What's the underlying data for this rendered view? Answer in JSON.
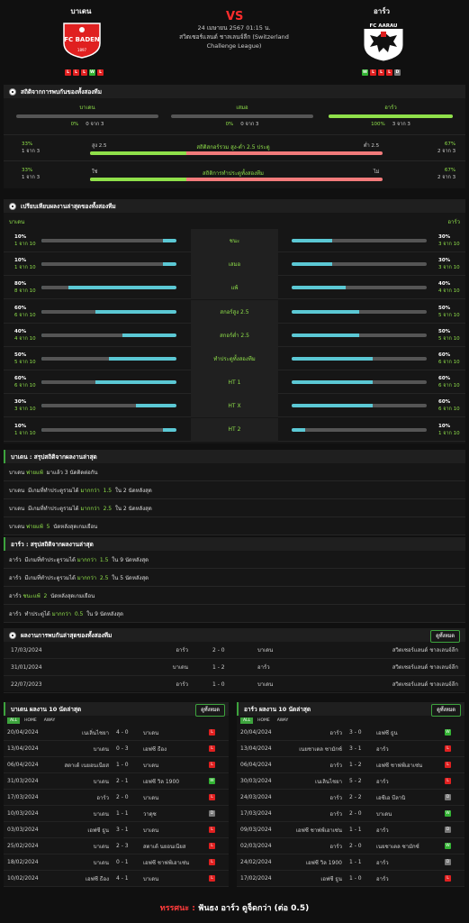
{
  "header": {
    "home": "บาเดน",
    "away": "อาร์ว",
    "vs": "VS",
    "date": "24 เมษายน 2567 01:15 น.",
    "league_line1": "สวิตเซอร์แลนด์ ชาลเลนจ์ลีก (Switzerland",
    "league_line2": "Challenge League)",
    "home_logo_text": "FC BADEN",
    "home_logo_sub": "1897",
    "away_logo_text": "FC AARAU",
    "home_form": [
      "L",
      "L",
      "L",
      "W",
      "L"
    ],
    "away_form": [
      "W",
      "L",
      "L",
      "L",
      "D"
    ]
  },
  "h2h_stats": {
    "title": "สถิติจากการพบกันของทั้งสองทีม",
    "cols": [
      {
        "name": "บาเดน",
        "pct": "0%",
        "sub": "0 จาก 3",
        "fill": 0
      },
      {
        "name": "เสมอ",
        "pct": "0%",
        "sub": "0 จาก 3",
        "fill": 0
      },
      {
        "name": "อาร์ว",
        "pct": "100%",
        "sub": "3 จาก 3",
        "fill": 1
      }
    ],
    "ou": {
      "left_pct": "33%",
      "left_sub": "1 จาก 3",
      "over_label": "สูง 2.5",
      "title": "สถิติสกอร์รวม สูง-ต่ำ 2.5 ประตู",
      "under_label": "ต่ำ 2.5",
      "right_pct": "67%",
      "right_sub": "2 จาก 3",
      "left_fill": 0.33
    },
    "btts": {
      "left_pct": "33%",
      "left_sub": "1 จาก 3",
      "yes_label": "ใช่",
      "title": "สถิติการทำประตูทั้งสองทีม",
      "no_label": "ไม่",
      "right_pct": "67%",
      "right_sub": "2 จาก 3",
      "left_fill": 0.33
    }
  },
  "compare": {
    "title": "เปรียบเทียบผลงานล่าสุดของทั้งสองทีม",
    "home": "บาเดน",
    "away": "อาร์ว",
    "rows": [
      {
        "label": "ชนะ",
        "l": "10%",
        "ls": "1 จาก 10",
        "lf": 0.1,
        "r": "30%",
        "rs": "3 จาก 10",
        "rf": 0.3
      },
      {
        "label": "เสมอ",
        "l": "10%",
        "ls": "1 จาก 10",
        "lf": 0.1,
        "r": "30%",
        "rs": "3 จาก 10",
        "rf": 0.3
      },
      {
        "label": "แพ้",
        "l": "80%",
        "ls": "8 จาก 10",
        "lf": 0.8,
        "r": "40%",
        "rs": "4 จาก 10",
        "rf": 0.4
      },
      {
        "label": "สกอร์สูง 2.5",
        "l": "60%",
        "ls": "6 จาก 10",
        "lf": 0.6,
        "r": "50%",
        "rs": "5 จาก 10",
        "rf": 0.5
      },
      {
        "label": "สกอร์ต่ำ 2.5",
        "l": "40%",
        "ls": "4 จาก 10",
        "lf": 0.4,
        "r": "50%",
        "rs": "5 จาก 10",
        "rf": 0.5
      },
      {
        "label": "ทำประตูทั้งสองทีม",
        "l": "50%",
        "ls": "5 จาก 10",
        "lf": 0.5,
        "r": "60%",
        "rs": "6 จาก 10",
        "rf": 0.6
      },
      {
        "label": "HT 1",
        "l": "60%",
        "ls": "6 จาก 10",
        "lf": 0.6,
        "r": "60%",
        "rs": "6 จาก 10",
        "rf": 0.6
      },
      {
        "label": "HT X",
        "l": "30%",
        "ls": "3 จาก 10",
        "lf": 0.3,
        "r": "60%",
        "rs": "6 จาก 10",
        "rf": 0.6
      },
      {
        "label": "HT 2",
        "l": "10%",
        "ls": "1 จาก 10",
        "lf": 0.1,
        "r": "10%",
        "rs": "1 จาก 10",
        "rf": 0.1
      }
    ]
  },
  "home_summary": {
    "title": "บาเดน : สรุปสถิติจากผลงานล่าสุด",
    "rows": [
      [
        "บาเดน ",
        "พ่ายแพ้",
        "  มาแล้ว 3 นัดติดต่อกัน"
      ],
      [
        "บาเดน  มีเกมที่ทำประตูรวมได้ ",
        "มากกว่า  1.5",
        "  ใน 2 นัดหลังสุด"
      ],
      [
        "บาเดน  มีเกมที่ทำประตูรวมได้ ",
        "มากกว่า  2.5",
        "  ใน 2 นัดหลังสุด"
      ],
      [
        "บาเดน ",
        "พ่ายแพ้  5",
        "  นัดหลังสุดเกมเยือน"
      ]
    ]
  },
  "away_summary": {
    "title": "อาร์ว : สรุปสถิติจากผลงานล่าสุด",
    "rows": [
      [
        "อาร์ว  มีเกมที่ทำประตูรวมได้ ",
        "มากกว่า  1.5",
        "  ใน 9 นัดหลังสุด"
      ],
      [
        "อาร์ว  มีเกมที่ทำประตูรวมได้ ",
        "มากกว่า  2.5",
        "  ใน 5 นัดหลังสุด"
      ],
      [
        "อาร์ว ",
        "ชนะแพ้  2",
        "  นัดหลังสุดเกมเยือน"
      ],
      [
        "อาร์ว  ทำประตูได้ ",
        "มากกว่า  0.5",
        "  ใน 9 นัดหลังสุด"
      ]
    ]
  },
  "h2h_results": {
    "title": "ผลงานการพบกันล่าสุดของทั้งสองทีม",
    "btn": "ดูทั้งหมด",
    "rows": [
      {
        "date": "17/03/2024",
        "home": "อาร์ว",
        "score": "2 - 0",
        "away": "บาเดน",
        "league": "สวิตเซอร์แลนด์ ชาลเลนจ์ลีก"
      },
      {
        "date": "31/01/2024",
        "home": "บาเดน",
        "score": "1 - 2",
        "away": "อาร์ว",
        "league": "สวิตเซอร์แลนด์ ชาลเลนจ์ลีก"
      },
      {
        "date": "22/07/2023",
        "home": "อาร์ว",
        "score": "1 - 0",
        "away": "บาเดน",
        "league": "สวิตเซอร์แลนด์ ชาลเลนจ์ลีก"
      }
    ]
  },
  "home_last10": {
    "title": "บาเดน ผลงาน 10 นัดล่าสุด",
    "btn": "ดูทั้งหมด",
    "tabs": [
      "ALL",
      "HOME",
      "AWAY"
    ],
    "rows": [
      {
        "date": "20/04/2024",
        "home": "เนเลิ่นไชยา",
        "score": "4 - 0",
        "away": "บาเดน",
        "r": "L"
      },
      {
        "date": "13/04/2024",
        "home": "บาเดน",
        "score": "0 - 3",
        "away": "เอฟซี ธีอง",
        "r": "L"
      },
      {
        "date": "06/04/2024",
        "home": "สตาเด้ เนยอนเนียส",
        "score": "1 - 0",
        "away": "บาเดน",
        "r": "L"
      },
      {
        "date": "31/03/2024",
        "home": "บาเดน",
        "score": "2 - 1",
        "away": "เอฟซี วิล 1900",
        "r": "W"
      },
      {
        "date": "17/03/2024",
        "home": "อาร์ว",
        "score": "2 - 0",
        "away": "บาเดน",
        "r": "L"
      },
      {
        "date": "10/03/2024",
        "home": "บาเดน",
        "score": "1 - 1",
        "away": "วาดุซ",
        "r": "D"
      },
      {
        "date": "03/03/2024",
        "home": "เอฟซี ธูน",
        "score": "3 - 1",
        "away": "บาเดน",
        "r": "L"
      },
      {
        "date": "25/02/2024",
        "home": "บาเดน",
        "score": "2 - 3",
        "away": "สตาเด้ นยอนเนียส",
        "r": "L"
      },
      {
        "date": "18/02/2024",
        "home": "บาเดน",
        "score": "0 - 1",
        "away": "เอฟซี ชาฟฟ์เฮาเซ่น",
        "r": "L"
      },
      {
        "date": "10/02/2024",
        "home": "เอฟซี ธีอง",
        "score": "4 - 1",
        "away": "บาเดน",
        "r": "L"
      }
    ]
  },
  "away_last10": {
    "title": "อาร์ว ผลงาน 10 นัดล่าสุด",
    "btn": "ดูทั้งหมด",
    "tabs": [
      "ALL",
      "HOME",
      "AWAY"
    ],
    "rows": [
      {
        "date": "20/04/2024",
        "home": "อาร์ว",
        "score": "3 - 0",
        "away": "เอฟซี ธูน",
        "r": "W"
      },
      {
        "date": "13/04/2024",
        "home": "เนยชาเตล ซามักซ์",
        "score": "3 - 1",
        "away": "อาร์ว",
        "r": "L"
      },
      {
        "date": "06/04/2024",
        "home": "อาร์ว",
        "score": "1 - 2",
        "away": "เอฟซี ชาฟฟ์เฮาเซ่น",
        "r": "L"
      },
      {
        "date": "30/03/2024",
        "home": "เนเลินไชยา",
        "score": "5 - 2",
        "away": "อาร์ว",
        "r": "L"
      },
      {
        "date": "24/03/2024",
        "home": "อาร์ว",
        "score": "2 - 2",
        "away": "เอซีเอ บีลานิ",
        "r": "D"
      },
      {
        "date": "17/03/2024",
        "home": "อาร์ว",
        "score": "2 - 0",
        "away": "บาเดน",
        "r": "W"
      },
      {
        "date": "09/03/2024",
        "home": "เอฟซี ชาฟฟ์เฮาเซ่น",
        "score": "1 - 1",
        "away": "อาร์ว",
        "r": "D"
      },
      {
        "date": "02/03/2024",
        "home": "อาร์ว",
        "score": "2 - 0",
        "away": "เนยชาเตล ซามักซ์",
        "r": "W"
      },
      {
        "date": "24/02/2024",
        "home": "เอฟซี วิล 1900",
        "score": "1 - 1",
        "away": "อาร์ว",
        "r": "D"
      },
      {
        "date": "17/02/2024",
        "home": "เอฟซี ธูน",
        "score": "1 - 0",
        "away": "อาร์ว",
        "r": "L"
      }
    ]
  },
  "prediction": {
    "label": "ทรรศนะ :",
    "text": "ฟันธง อาร์ว ดูจ็ดกว่า (ต่อ 0.5)"
  },
  "colors": {
    "green": "#8fe04a",
    "cyan": "#5bc8d4",
    "red": "#e02020",
    "salmon": "#f27b7b"
  }
}
